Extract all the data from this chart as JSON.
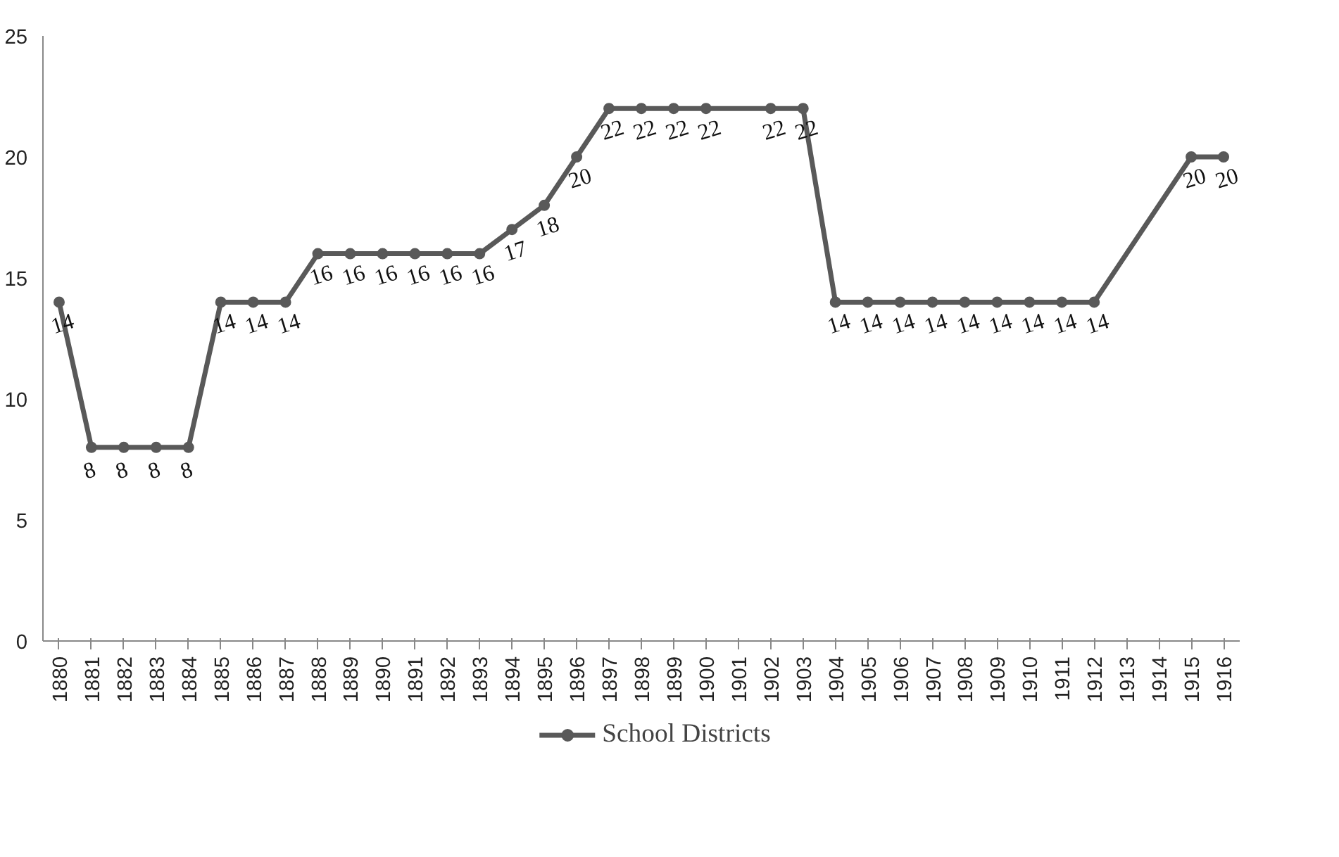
{
  "chart_data": {
    "type": "line",
    "x": [
      1880,
      1881,
      1882,
      1883,
      1884,
      1885,
      1886,
      1887,
      1888,
      1889,
      1890,
      1891,
      1892,
      1893,
      1894,
      1895,
      1896,
      1897,
      1898,
      1899,
      1900,
      1902,
      1903,
      1904,
      1905,
      1906,
      1907,
      1908,
      1909,
      1910,
      1911,
      1912,
      1915,
      1916
    ],
    "series": [
      {
        "name": "School Districts",
        "color": "#595959",
        "values": [
          14,
          8,
          8,
          8,
          8,
          14,
          14,
          14,
          16,
          16,
          16,
          16,
          16,
          16,
          17,
          18,
          20,
          22,
          22,
          22,
          22,
          22,
          22,
          14,
          14,
          14,
          14,
          14,
          14,
          14,
          14,
          14,
          20,
          20
        ]
      }
    ],
    "xlim": [
      1879.5,
      1916.5
    ],
    "xticks": [
      1880,
      1881,
      1882,
      1883,
      1884,
      1885,
      1886,
      1887,
      1888,
      1889,
      1890,
      1891,
      1892,
      1893,
      1894,
      1895,
      1896,
      1897,
      1898,
      1899,
      1900,
      1901,
      1902,
      1903,
      1904,
      1905,
      1906,
      1907,
      1908,
      1909,
      1910,
      1911,
      1912,
      1913,
      1914,
      1915,
      1916
    ],
    "ylim": [
      0,
      25
    ],
    "yticks": [
      0,
      5,
      10,
      15,
      20,
      25
    ],
    "grid": false,
    "legend": "bottom",
    "marker": "circle",
    "line_style": "solid",
    "data_labels": true
  }
}
